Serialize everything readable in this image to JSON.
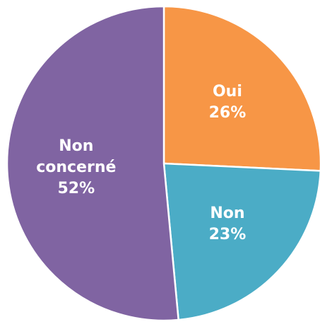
{
  "chart_data": {
    "type": "pie",
    "slices": [
      {
        "label_lines": [
          "Oui"
        ],
        "value_label": "26%",
        "value": 26,
        "color": "#F79646"
      },
      {
        "label_lines": [
          "Non"
        ],
        "value_label": "23%",
        "value": 23,
        "color": "#4BACC6"
      },
      {
        "label_lines": [
          "Non",
          "concerné"
        ],
        "value_label": "52%",
        "value": 52,
        "color": "#8064A2"
      }
    ],
    "start_angle_deg": 0,
    "direction": "clockwise",
    "legend": "none"
  }
}
